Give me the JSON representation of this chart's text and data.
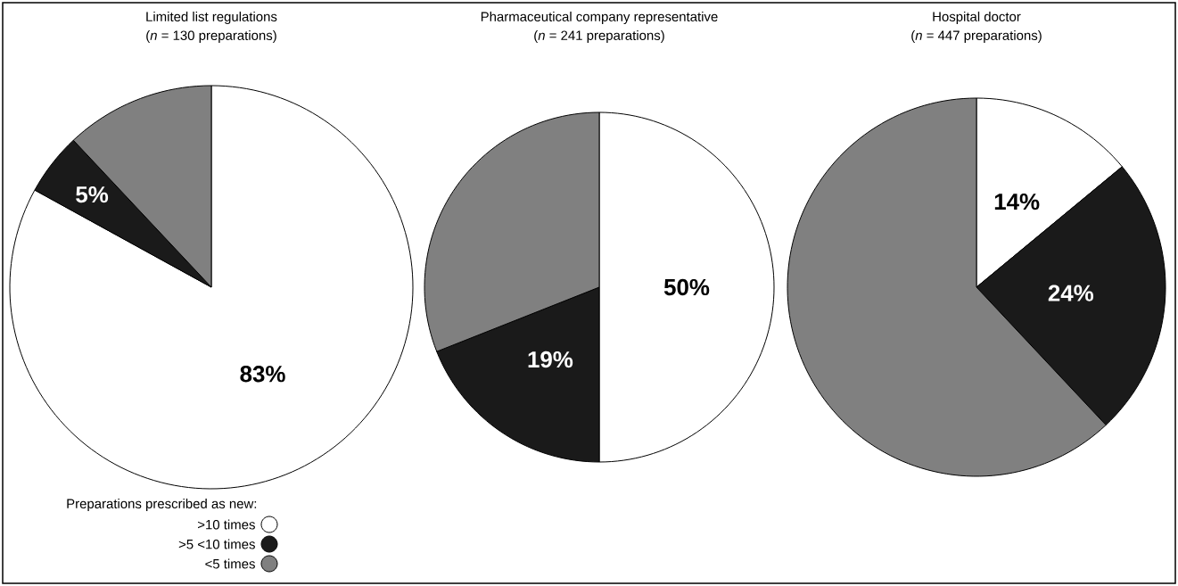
{
  "chart_data": [
    {
      "type": "pie",
      "title": "Limited list regulations",
      "subtitle": "(*n* = 130 preparations)",
      "categories": [
        ">10 times",
        ">5 <10 times",
        "<5 times"
      ],
      "values": [
        83,
        5,
        12
      ],
      "colors": [
        "#ffffff",
        "#1a1a1a",
        "#808080"
      ],
      "value_labels": [
        "83%",
        "5%",
        null
      ],
      "legend": "bottom left",
      "legend_title": "Preparations prescribed as new:"
    },
    {
      "type": "pie",
      "title": "Pharmaceutical company representative",
      "subtitle": "(*n* = 241 preparations)",
      "values": [
        50,
        19,
        31
      ],
      "colors": [
        "#ffffff",
        "#1a1a1a",
        "#808080"
      ],
      "value_labels": [
        "50%",
        "19%",
        null
      ]
    },
    {
      "type": "pie",
      "title": "Hospital doctor",
      "subtitle": "(*n* = 447 preparations)",
      "values": [
        14,
        24,
        62
      ],
      "colors": [
        "#ffffff",
        "#1a1a1a",
        "#808080"
      ],
      "value_labels": [
        "14%",
        "24%",
        null
      ]
    }
  ]
}
